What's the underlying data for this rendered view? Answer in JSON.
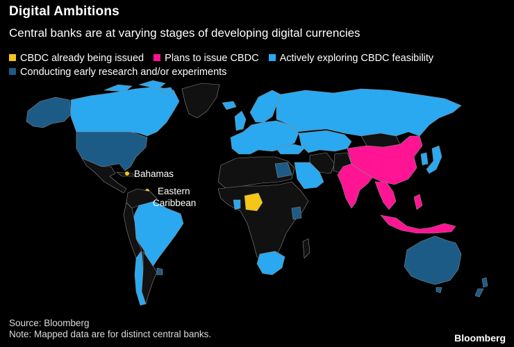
{
  "title": "Digital Ambitions",
  "subtitle": "Central banks are at varying stages of developing digital currencies",
  "legend": [
    {
      "label": "CBDC already being issued",
      "color": "#f5c518"
    },
    {
      "label": "Plans to issue CBDC",
      "color": "#ff1493"
    },
    {
      "label": "Actively exploring CBDC feasibility",
      "color": "#2aa8f0"
    },
    {
      "label": "Conducting early research and/or experiments",
      "color": "#1c5b86"
    }
  ],
  "colors": {
    "background": "#000000",
    "land_other": "#111111",
    "border": "#8a8a8a",
    "issued": "#f5c518",
    "plans": "#ff1493",
    "exploring": "#2aa8f0",
    "research": "#1c5b86"
  },
  "map_labels": {
    "bahamas": "Bahamas",
    "eastern_caribbean_line1": "Eastern",
    "eastern_caribbean_line2": "Caribbean"
  },
  "footer": {
    "source": "Source: Bloomberg",
    "note": "Note: Mapped data are for distinct central banks.",
    "brand": "Bloomberg"
  }
}
